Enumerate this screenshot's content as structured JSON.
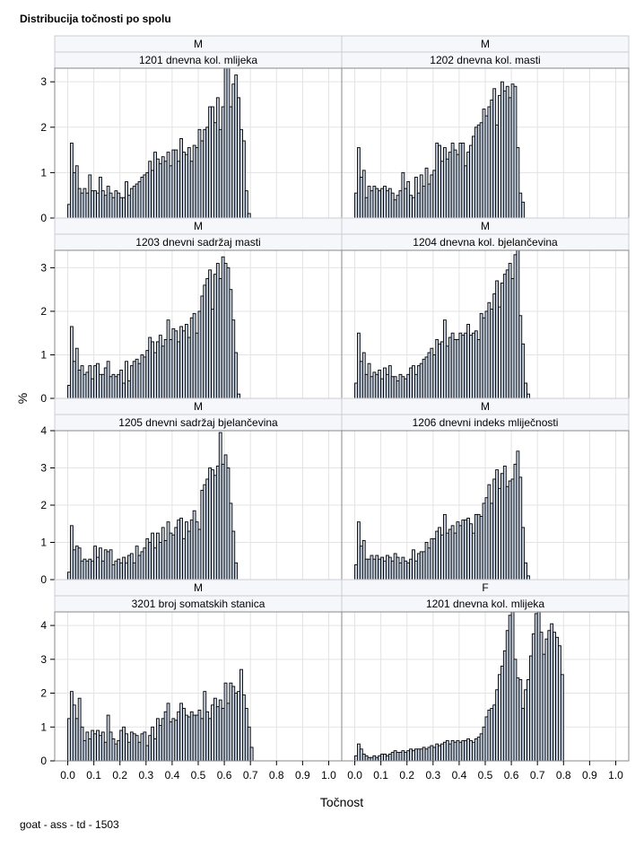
{
  "title": "Distribucija točnosti po spolu",
  "footer": "goat - ass - td - 1503",
  "chart_data": {
    "type": "bar",
    "title": "Distribucija točnosti po spolu",
    "xlabel": "Točnost",
    "ylabel": "%",
    "xlim": [
      -0.05,
      1.05
    ],
    "x_ticks": [
      "0.0",
      "0.1",
      "0.2",
      "0.3",
      "0.4",
      "0.5",
      "0.6",
      "0.7",
      "0.8",
      "0.9",
      "1.0"
    ],
    "bin_width": 0.01,
    "bin_start": 0.0,
    "grid": true,
    "panels": [
      {
        "header": "M",
        "subheader": "1201 dnevna kol. mlijeka",
        "ylim": [
          0,
          3.3
        ],
        "y_ticks": [
          "0",
          "1",
          "2",
          "3"
        ],
        "values": [
          0.3,
          1.65,
          1.0,
          1.15,
          0.65,
          0.55,
          0.65,
          0.55,
          0.95,
          0.6,
          0.6,
          0.55,
          0.9,
          0.6,
          0.5,
          0.7,
          0.55,
          0.45,
          0.6,
          0.55,
          0.45,
          0.45,
          0.8,
          0.5,
          0.65,
          0.7,
          0.75,
          0.8,
          0.9,
          0.95,
          1.0,
          1.25,
          1.05,
          1.45,
          1.3,
          1.2,
          1.35,
          1.25,
          1.45,
          1.15,
          1.5,
          1.5,
          1.25,
          1.75,
          1.45,
          1.4,
          1.55,
          1.25,
          1.6,
          1.55,
          1.95,
          1.7,
          1.95,
          2.0,
          2.45,
          2.45,
          2.1,
          2.65,
          1.95,
          2.45,
          3.3,
          3.3,
          2.45,
          2.95,
          3.15,
          2.65,
          1.95,
          1.7,
          0.6,
          0.1
        ]
      },
      {
        "header": "M",
        "subheader": "1202 dnevna kol. masti",
        "ylim": [
          0,
          3.3
        ],
        "y_ticks": [
          "0",
          "1",
          "2",
          "3"
        ],
        "values": [
          0.55,
          1.55,
          0.9,
          1.05,
          0.45,
          0.7,
          0.6,
          0.7,
          0.65,
          0.6,
          0.65,
          0.7,
          0.6,
          0.65,
          0.55,
          0.4,
          0.5,
          0.6,
          1.0,
          0.65,
          0.8,
          0.5,
          0.45,
          0.9,
          0.55,
          0.95,
          0.7,
          1.1,
          0.75,
          0.95,
          1.05,
          1.65,
          1.6,
          1.25,
          1.55,
          1.3,
          1.45,
          1.65,
          1.5,
          1.4,
          1.65,
          1.65,
          1.15,
          1.45,
          1.6,
          1.8,
          2.0,
          2.05,
          2.1,
          2.4,
          2.25,
          2.45,
          2.6,
          2.85,
          2.05,
          2.7,
          3.0,
          2.8,
          2.9,
          2.65,
          2.95,
          2.9,
          1.55,
          0.55,
          0.35
        ]
      },
      {
        "header": "M",
        "subheader": "1203 dnevni sadržaj masti",
        "ylim": [
          0,
          3.4
        ],
        "y_ticks": [
          "0",
          "1",
          "2",
          "3"
        ],
        "values": [
          0.3,
          1.65,
          0.85,
          1.15,
          0.65,
          0.75,
          0.55,
          0.6,
          0.75,
          0.45,
          0.75,
          0.8,
          0.55,
          0.55,
          0.7,
          0.85,
          0.5,
          0.55,
          0.5,
          0.55,
          0.65,
          0.35,
          0.85,
          0.4,
          0.75,
          0.85,
          0.9,
          0.8,
          1.0,
          0.95,
          1.1,
          1.4,
          1.3,
          1.05,
          1.3,
          1.45,
          1.2,
          1.35,
          1.8,
          1.35,
          1.6,
          1.55,
          1.3,
          1.65,
          1.55,
          1.7,
          1.4,
          1.85,
          1.95,
          1.5,
          2.0,
          2.35,
          2.6,
          2.75,
          2.95,
          2.05,
          2.85,
          3.1,
          2.75,
          3.25,
          3.1,
          3.0,
          2.5,
          1.8,
          1.05,
          0.1
        ]
      },
      {
        "header": "M",
        "subheader": "1204 dnevna kol. bjelančevina",
        "ylim": [
          0,
          3.4
        ],
        "y_ticks": [
          "0",
          "1",
          "2",
          "3"
        ],
        "values": [
          0.35,
          1.5,
          0.85,
          1.05,
          0.55,
          0.8,
          0.5,
          0.6,
          0.55,
          0.65,
          0.45,
          0.7,
          0.55,
          0.75,
          0.5,
          0.5,
          0.4,
          0.55,
          0.5,
          0.45,
          0.55,
          0.7,
          0.75,
          0.55,
          0.75,
          0.8,
          0.9,
          0.95,
          1.05,
          1.15,
          1.0,
          1.35,
          1.25,
          1.3,
          1.8,
          1.2,
          1.4,
          1.5,
          1.35,
          1.35,
          1.5,
          1.45,
          1.5,
          1.7,
          1.45,
          1.5,
          1.55,
          1.35,
          1.95,
          1.85,
          2.0,
          2.2,
          2.05,
          2.4,
          2.7,
          2.1,
          2.65,
          2.85,
          2.95,
          3.1,
          2.75,
          3.3,
          3.5,
          1.9,
          1.25,
          0.35,
          0.1
        ]
      },
      {
        "header": "M",
        "subheader": "1205 dnevni sadržaj bjelančevina",
        "ylim": [
          0,
          4.0
        ],
        "y_ticks": [
          "0",
          "1",
          "2",
          "3",
          "4"
        ],
        "values": [
          0.2,
          1.45,
          0.8,
          0.9,
          0.85,
          0.5,
          0.55,
          0.5,
          0.55,
          0.5,
          0.9,
          0.6,
          0.85,
          0.5,
          0.8,
          0.75,
          0.8,
          0.4,
          0.5,
          0.55,
          0.45,
          0.6,
          0.45,
          0.65,
          0.7,
          0.45,
          0.9,
          0.65,
          0.75,
          0.85,
          1.1,
          1.0,
          1.25,
          0.85,
          1.25,
          1.0,
          1.4,
          1.05,
          1.55,
          1.25,
          1.2,
          1.4,
          1.6,
          1.65,
          1.1,
          1.55,
          1.3,
          1.6,
          1.85,
          1.55,
          1.35,
          2.4,
          2.55,
          2.7,
          3.0,
          2.95,
          2.8,
          3.05,
          3.95,
          3.1,
          3.35,
          3.0,
          2.05,
          1.3,
          0.45
        ]
      },
      {
        "header": "M",
        "subheader": "1206 dnevni indeks mliječnosti",
        "ylim": [
          0,
          4.0
        ],
        "y_ticks": [
          "0",
          "1",
          "2",
          "3",
          "4"
        ],
        "values": [
          0.4,
          1.55,
          0.9,
          1.05,
          0.55,
          0.55,
          0.65,
          0.55,
          0.65,
          0.55,
          0.6,
          0.5,
          0.65,
          0.6,
          0.5,
          0.7,
          0.6,
          0.45,
          0.6,
          0.5,
          0.45,
          0.55,
          0.8,
          0.5,
          0.7,
          0.75,
          0.75,
          1.0,
          0.85,
          1.1,
          1.1,
          1.3,
          1.4,
          1.2,
          1.75,
          1.25,
          1.35,
          1.45,
          1.25,
          1.55,
          1.45,
          1.6,
          1.6,
          1.65,
          1.5,
          1.25,
          1.75,
          1.75,
          1.7,
          2.05,
          2.2,
          2.55,
          2.05,
          2.7,
          2.95,
          2.45,
          2.85,
          3.05,
          2.5,
          2.65,
          2.7,
          3.1,
          3.45,
          2.75,
          1.4,
          0.45,
          0.1
        ]
      },
      {
        "header": "M",
        "subheader": "3201 broj somatskih stanica",
        "ylim": [
          0,
          4.4
        ],
        "y_ticks": [
          "0",
          "1",
          "2",
          "3",
          "4"
        ],
        "values": [
          1.25,
          2.05,
          1.65,
          1.25,
          1.85,
          1.0,
          0.6,
          0.85,
          0.65,
          0.9,
          0.8,
          0.9,
          0.75,
          0.85,
          0.55,
          1.35,
          0.85,
          0.65,
          0.5,
          0.6,
          0.9,
          1.0,
          0.8,
          0.55,
          0.85,
          0.8,
          0.75,
          0.55,
          0.8,
          0.85,
          0.45,
          0.75,
          1.0,
          0.65,
          1.25,
          1.05,
          1.25,
          1.45,
          1.7,
          1.15,
          1.25,
          1.2,
          1.45,
          1.7,
          1.55,
          1.35,
          1.3,
          1.45,
          1.35,
          1.35,
          1.5,
          1.25,
          2.05,
          1.45,
          1.25,
          1.65,
          1.85,
          1.6,
          1.8,
          1.55,
          2.3,
          1.7,
          2.3,
          2.2,
          2.0,
          2.05,
          2.7,
          1.95,
          1.55,
          1.0,
          0.4
        ]
      },
      {
        "header": "F",
        "subheader": "1201 dnevna kol. mlijeka",
        "ylim": [
          0,
          4.4
        ],
        "y_ticks": [
          "0",
          "1",
          "2",
          "3",
          "4"
        ],
        "values": [
          0.15,
          0.5,
          0.35,
          0.2,
          0.15,
          0.1,
          0.1,
          0.15,
          0.1,
          0.15,
          0.2,
          0.2,
          0.15,
          0.2,
          0.25,
          0.3,
          0.25,
          0.25,
          0.3,
          0.25,
          0.3,
          0.35,
          0.3,
          0.35,
          0.35,
          0.35,
          0.4,
          0.35,
          0.4,
          0.45,
          0.4,
          0.5,
          0.45,
          0.5,
          0.55,
          0.6,
          0.5,
          0.6,
          0.55,
          0.6,
          0.55,
          0.6,
          0.6,
          0.65,
          0.6,
          0.55,
          0.65,
          0.7,
          0.8,
          1.0,
          1.3,
          1.5,
          1.55,
          1.65,
          2.1,
          2.55,
          2.8,
          3.25,
          3.85,
          4.3,
          4.55,
          3.0,
          2.45,
          2.4,
          1.55,
          2.1,
          2.4,
          3.1,
          3.75,
          4.35,
          4.45,
          3.8,
          3.15,
          3.6,
          3.85,
          4.05,
          3.8,
          3.65,
          3.4,
          2.55
        ]
      }
    ]
  }
}
